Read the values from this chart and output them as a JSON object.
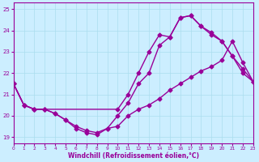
{
  "xlabel": "Windchill (Refroidissement éolien,°C)",
  "background_color": "#cceeff",
  "line_color": "#990099",
  "xlim": [
    0,
    23
  ],
  "ylim": [
    18.7,
    25.3
  ],
  "xticks": [
    0,
    1,
    2,
    3,
    4,
    5,
    6,
    7,
    8,
    9,
    10,
    11,
    12,
    13,
    14,
    15,
    16,
    17,
    18,
    19,
    20,
    21,
    22,
    23
  ],
  "yticks": [
    19,
    20,
    21,
    22,
    23,
    24,
    25
  ],
  "grid_color": "#aaddee",
  "curve1_x": [
    0,
    1,
    2,
    3,
    10,
    11,
    12,
    13,
    14,
    15,
    16,
    17,
    18,
    19,
    20,
    21,
    22,
    23
  ],
  "curve1_y": [
    21.5,
    20.5,
    20.3,
    20.3,
    20.3,
    21.0,
    22.0,
    23.0,
    23.8,
    23.7,
    24.6,
    24.7,
    24.2,
    23.8,
    23.5,
    22.8,
    22.2,
    21.6
  ],
  "curve2_x": [
    0,
    1,
    2,
    3,
    4,
    5,
    6,
    7,
    8,
    9,
    10,
    11,
    12,
    13,
    14,
    15,
    16,
    17,
    18,
    19,
    20,
    21,
    22,
    23
  ],
  "curve2_y": [
    21.5,
    20.5,
    20.3,
    20.3,
    20.1,
    19.8,
    19.5,
    19.3,
    19.2,
    19.4,
    20.0,
    20.6,
    21.5,
    22.0,
    23.3,
    23.7,
    24.6,
    24.7,
    24.2,
    23.9,
    23.5,
    22.8,
    22.0,
    21.6
  ],
  "curve3_x": [
    0,
    1,
    2,
    3,
    4,
    5,
    6,
    7,
    8,
    9,
    10,
    11,
    12,
    13,
    14,
    15,
    16,
    17,
    18,
    19,
    20,
    21,
    22,
    23
  ],
  "curve3_y": [
    21.5,
    20.5,
    20.3,
    20.3,
    20.1,
    19.8,
    19.4,
    19.2,
    19.1,
    19.4,
    19.5,
    20.0,
    20.3,
    20.5,
    20.8,
    21.2,
    21.5,
    21.8,
    22.1,
    22.3,
    22.6,
    23.5,
    22.5,
    21.6
  ],
  "marker": "D",
  "markersize": 2.5,
  "linewidth": 1.0
}
